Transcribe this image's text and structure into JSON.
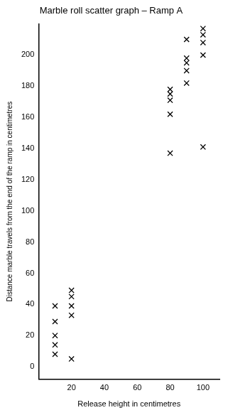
{
  "chart_data": {
    "type": "scatter",
    "title": "Marble roll scatter graph – Ramp A",
    "x_label": "Release height in centimetres",
    "y_label": "Distance marble travels from the end of the ramp in centimetres",
    "x": [
      10,
      10,
      10,
      10,
      10,
      20,
      20,
      20,
      20,
      20,
      80,
      80,
      80,
      80,
      80,
      90,
      90,
      90,
      90,
      90,
      100,
      100,
      100,
      100,
      100
    ],
    "values": [
      39,
      29,
      20,
      14,
      8,
      49,
      45,
      39,
      33,
      5,
      178,
      175,
      171,
      162,
      137,
      210,
      198,
      195,
      190,
      182,
      217,
      213,
      208,
      200,
      141
    ],
    "color": "#000000",
    "marker": "x",
    "xlim": [
      0,
      110
    ],
    "xticks": [
      20,
      40,
      60,
      80,
      100
    ],
    "ylim": [
      -8,
      220
    ],
    "yticks": [
      0,
      20,
      40,
      60,
      80,
      100,
      120,
      140,
      160,
      180,
      200
    ],
    "grid": false
  }
}
